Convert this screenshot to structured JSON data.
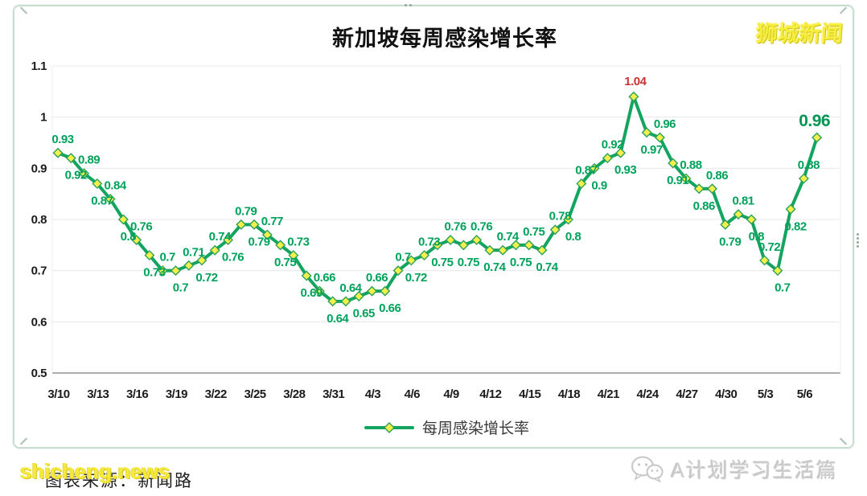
{
  "page": {
    "title": "新加坡每周感染增长率",
    "logo_text": "狮城新闻"
  },
  "chart_data": {
    "type": "line",
    "title": "新加坡每周感染增长率",
    "x_tick_labels": [
      "3/10",
      "3/13",
      "3/16",
      "3/19",
      "3/22",
      "3/25",
      "3/28",
      "3/31",
      "4/3",
      "4/6",
      "4/9",
      "4/12",
      "4/15",
      "4/18",
      "4/21",
      "4/24",
      "4/27",
      "4/30",
      "5/3",
      "5/6"
    ],
    "points_per_tick_interval": 3,
    "series": [
      {
        "name": "每周感染增长率",
        "values": [
          0.93,
          0.92,
          0.89,
          0.87,
          0.84,
          0.8,
          0.76,
          0.73,
          0.7,
          0.7,
          0.71,
          0.72,
          0.74,
          0.76,
          0.79,
          0.79,
          0.77,
          0.75,
          0.73,
          0.69,
          0.66,
          0.64,
          0.64,
          0.65,
          0.66,
          0.66,
          0.7,
          0.72,
          0.73,
          0.75,
          0.76,
          0.75,
          0.76,
          0.74,
          0.74,
          0.75,
          0.75,
          0.74,
          0.78,
          0.8,
          0.87,
          0.9,
          0.92,
          0.93,
          1.04,
          0.97,
          0.96,
          0.91,
          0.88,
          0.86,
          0.86,
          0.79,
          0.81,
          0.8,
          0.72,
          0.7,
          0.82,
          0.88,
          0.96
        ],
        "label_positions": [
          "a",
          "b",
          "a",
          "b",
          "a",
          "b",
          "a",
          "b",
          "a",
          "b",
          "a",
          "b",
          "a",
          "b",
          "a",
          "b",
          "a",
          "b",
          "a",
          "b",
          "a",
          "b",
          "a",
          "b",
          "a",
          "b",
          "a",
          "b",
          "a",
          "b",
          "a",
          "b",
          "a",
          "b",
          "a",
          "b",
          "a",
          "b",
          "a",
          "b",
          "a",
          "b",
          "a",
          "b",
          "a",
          "b",
          "a",
          "b",
          "a",
          "b",
          "a",
          "b",
          "a",
          "b",
          "a",
          "b",
          "b",
          "a",
          "a"
        ]
      }
    ],
    "ylim": [
      0.5,
      1.1
    ],
    "y_tick_labels": [
      "1.1",
      "1",
      "0.9",
      "0.8",
      "0.7",
      "0.6",
      "0.5"
    ],
    "y_tick_values": [
      1.1,
      1.0,
      0.9,
      0.8,
      0.7,
      0.6,
      0.5
    ],
    "grid": "horizontal",
    "legend": {
      "label": "每周感染增长率",
      "position": "bottom-center"
    },
    "max_point": {
      "index": 44,
      "value": 1.04
    },
    "last_point": {
      "index": 58,
      "value": 0.96,
      "emphasis": "bold-large"
    },
    "colors": {
      "line": "#13a55f",
      "marker_fill": "#f3ef4b",
      "marker_stroke": "#2da05a",
      "data_label": "#00a25b",
      "max_label": "#cd3232",
      "last_label": "#009552",
      "grid": "#e8e8e8",
      "axis": "#909090"
    }
  },
  "watermarks": {
    "bottom_left_dark": "图表来源：新闻路",
    "bottom_left_yellow": "shicheng.news",
    "bottom_right_account": "A计划学习生活篇",
    "bottom_right_icon": "wechat-icon"
  }
}
